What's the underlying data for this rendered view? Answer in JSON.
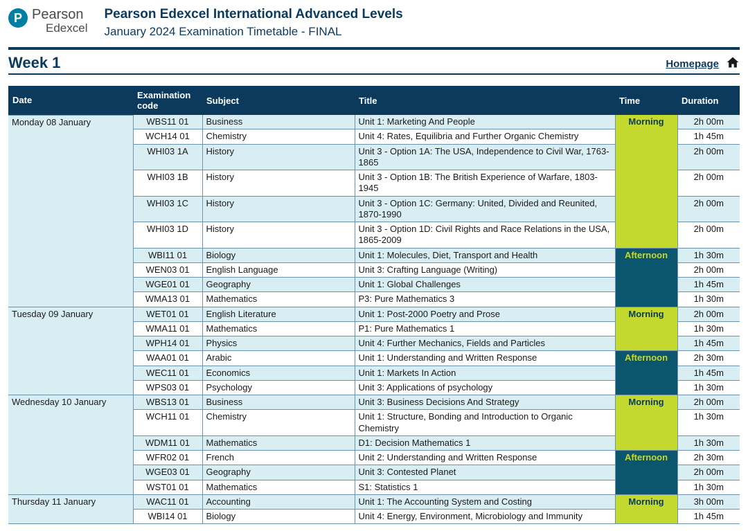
{
  "branding": {
    "logo_letter": "P",
    "brand_line1": "Pearson",
    "brand_line2": "Edexcel"
  },
  "header": {
    "main_title": "Pearson Edexcel International Advanced Levels",
    "sub_title": "January 2024  Examination Timetable - FINAL"
  },
  "week_label": "Week 1",
  "homepage_label": "Homepage",
  "columns": {
    "date": "Date",
    "code": "Examination code",
    "subject": "Subject",
    "title": "Title",
    "time": "Time",
    "duration": "Duration"
  },
  "time_labels": {
    "morning": "Morning",
    "afternoon": "Afternoon"
  },
  "colors": {
    "header_blue": "#0b3a5d",
    "row_tint": "#d9eef3",
    "morning_bg": "#c4d92e",
    "afternoon_bg": "#0b556e",
    "afternoon_fg": "#c4d92e",
    "rule_border": "#6c93ab"
  },
  "days": [
    {
      "date": "Monday 08 January",
      "sessions": [
        {
          "time": "morning",
          "exams": [
            {
              "code": "WBS11 01",
              "subject": "Business",
              "title": "Unit 1: Marketing And People",
              "duration": "2h 00m"
            },
            {
              "code": "WCH14 01",
              "subject": "Chemistry",
              "title": "Unit 4: Rates, Equilibria and Further Organic Chemistry",
              "duration": "1h 45m"
            },
            {
              "code": "WHI03 1A",
              "subject": "History",
              "title": "Unit 3 - Option 1A: The USA, Independence to Civil War, 1763-1865",
              "duration": "2h 00m"
            },
            {
              "code": "WHI03 1B",
              "subject": "History",
              "title": "Unit 3 - Option 1B: The British Experience of Warfare, 1803-1945",
              "duration": "2h 00m"
            },
            {
              "code": "WHI03 1C",
              "subject": "History",
              "title": "Unit 3 - Option 1C: Germany: United, Divided and Reunited, 1870-1990",
              "duration": "2h 00m"
            },
            {
              "code": "WHI03 1D",
              "subject": "History",
              "title": "Unit 3 - Option 1D: Civil Rights and Race Relations in the USA, 1865-2009",
              "duration": "2h 00m"
            }
          ]
        },
        {
          "time": "afternoon",
          "exams": [
            {
              "code": "WBI11 01",
              "subject": "Biology",
              "title": "Unit 1: Molecules, Diet, Transport and Health",
              "duration": "1h 30m"
            },
            {
              "code": "WEN03 01",
              "subject": "English Language",
              "title": "Unit 3: Crafting Language (Writing)",
              "duration": "2h 00m"
            },
            {
              "code": "WGE01 01",
              "subject": "Geography",
              "title": "Unit 1: Global Challenges",
              "duration": "1h 45m"
            },
            {
              "code": "WMA13 01",
              "subject": "Mathematics",
              "title": "P3: Pure Mathematics 3",
              "duration": "1h 30m"
            }
          ]
        }
      ]
    },
    {
      "date": "Tuesday 09 January",
      "sessions": [
        {
          "time": "morning",
          "exams": [
            {
              "code": "WET01 01",
              "subject": "English Literature",
              "title": "Unit 1: Post-2000 Poetry and Prose",
              "duration": "2h 00m"
            },
            {
              "code": "WMA11 01",
              "subject": "Mathematics",
              "title": "P1: Pure Mathematics 1",
              "duration": "1h 30m"
            },
            {
              "code": "WPH14 01",
              "subject": "Physics",
              "title": "Unit 4: Further Mechanics, Fields and Particles",
              "duration": "1h 45m"
            }
          ]
        },
        {
          "time": "afternoon",
          "exams": [
            {
              "code": "WAA01 01",
              "subject": "Arabic",
              "title": "Unit 1: Understanding and Written Response",
              "duration": "2h 30m"
            },
            {
              "code": "WEC11 01",
              "subject": "Economics",
              "title": "Unit 1: Markets In Action",
              "duration": "1h 45m"
            },
            {
              "code": "WPS03 01",
              "subject": "Psychology",
              "title": "Unit 3: Applications of psychology",
              "duration": "1h 30m"
            }
          ]
        }
      ]
    },
    {
      "date": "Wednesday 10 January",
      "sessions": [
        {
          "time": "morning",
          "exams": [
            {
              "code": "WBS13 01",
              "subject": "Business",
              "title": "Unit 3: Business Decisions And Strategy",
              "duration": "2h 00m"
            },
            {
              "code": "WCH11 01",
              "subject": "Chemistry",
              "title": "Unit 1: Structure, Bonding and Introduction to Organic Chemistry",
              "duration": "1h 30m"
            },
            {
              "code": "WDM11 01",
              "subject": "Mathematics",
              "title": "D1: Decision Mathematics 1",
              "duration": "1h 30m"
            }
          ]
        },
        {
          "time": "afternoon",
          "exams": [
            {
              "code": "WFR02 01",
              "subject": "French",
              "title": "Unit 2: Understanding and Written Response",
              "duration": "2h 30m"
            },
            {
              "code": "WGE03 01",
              "subject": "Geography",
              "title": "Unit 3: Contested Planet",
              "duration": "2h 00m"
            },
            {
              "code": "WST01 01",
              "subject": "Mathematics",
              "title": "S1: Statistics 1",
              "duration": "1h 30m"
            }
          ]
        }
      ]
    },
    {
      "date": "Thursday 11 January",
      "sessions": [
        {
          "time": "morning",
          "exams": [
            {
              "code": "WAC11 01",
              "subject": "Accounting",
              "title": "Unit 1: The Accounting System and Costing",
              "duration": "3h 00m"
            },
            {
              "code": "WBI14 01",
              "subject": "Biology",
              "title": "Unit 4: Energy, Environment, Microbiology and Immunity",
              "duration": "1h 45m"
            }
          ]
        }
      ]
    }
  ]
}
